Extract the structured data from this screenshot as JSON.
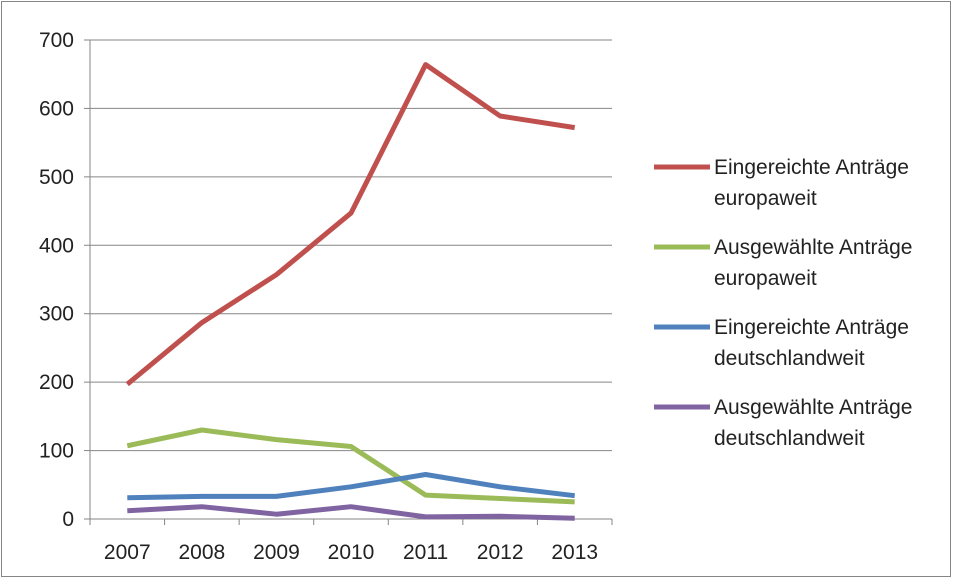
{
  "chart_data": {
    "type": "line",
    "title": "",
    "xlabel": "",
    "ylabel": "",
    "categories": [
      "2007",
      "2008",
      "2009",
      "2010",
      "2011",
      "2012",
      "2013"
    ],
    "y_ticks": [
      0,
      100,
      200,
      300,
      400,
      500,
      600,
      700
    ],
    "ylim": [
      0,
      700
    ],
    "grid": "horizontal",
    "legend_position": "right",
    "series": [
      {
        "name": "Eingereichte Anträge europaweit",
        "legend_lines": [
          "Eingereichte Anträge",
          "europaweit"
        ],
        "color": "#C0504D",
        "values": [
          197,
          287,
          357,
          447,
          664,
          589,
          572
        ]
      },
      {
        "name": "Ausgewählte Anträge europaweit",
        "legend_lines": [
          "Ausgewählte Anträge",
          "europaweit"
        ],
        "color": "#9BBB59",
        "values": [
          107,
          130,
          116,
          106,
          35,
          30,
          25
        ]
      },
      {
        "name": "Eingereichte Anträge deutschlandweit",
        "legend_lines": [
          "Eingereichte Anträge",
          "deutschlandweit"
        ],
        "color": "#4F81BD",
        "values": [
          31,
          33,
          33,
          47,
          65,
          47,
          34
        ]
      },
      {
        "name": "Ausgewählte Anträge deutschlandweit",
        "legend_lines": [
          "Ausgewählte Anträge",
          "deutschlandweit"
        ],
        "color": "#8064A2",
        "values": [
          12,
          18,
          7,
          18,
          3,
          4,
          1
        ]
      }
    ]
  }
}
